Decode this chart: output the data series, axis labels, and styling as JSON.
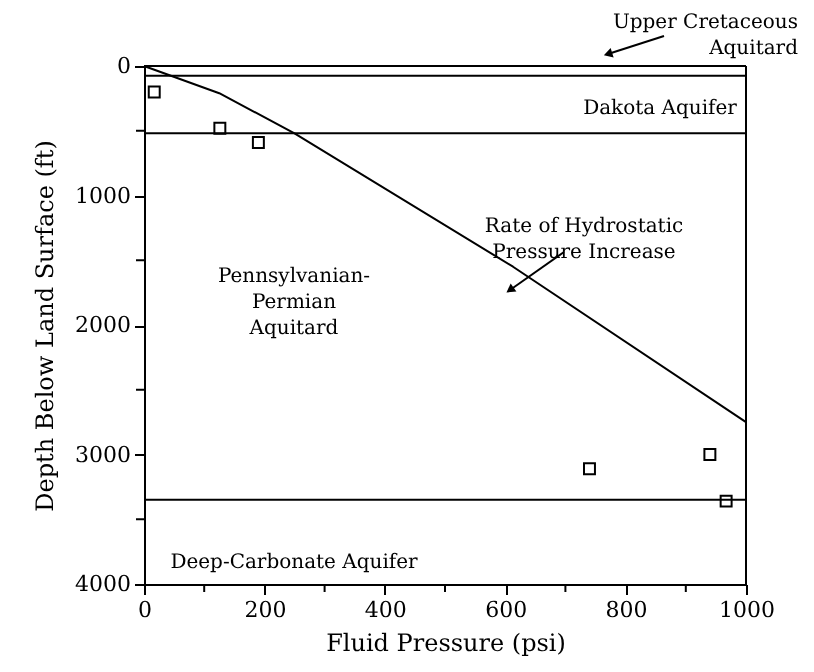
{
  "chart_data": {
    "type": "scatter",
    "xlabel": "Fluid Pressure (psi)",
    "ylabel": "Depth Below Land Surface (ft)",
    "xlim": [
      0,
      1000
    ],
    "ylim": [
      4000,
      0
    ],
    "xticks": [
      0,
      {
        "value": 100,
        "label": null
      },
      200,
      {
        "value": 300,
        "label": null
      },
      400,
      {
        "value": 500,
        "label": null
      },
      600,
      {
        "value": 700,
        "label": null
      },
      800,
      {
        "value": 900,
        "label": null
      },
      1000
    ],
    "yticks": [
      0,
      {
        "value": 500,
        "label": null
      },
      1000,
      {
        "value": 1500,
        "label": null
      },
      2000,
      {
        "value": 2500,
        "label": null
      },
      3000,
      {
        "value": 3500,
        "label": null
      },
      4000
    ],
    "series": [
      {
        "color": "#000000",
        "marker": "square",
        "x": [
          17,
          126,
          190,
          740,
          940,
          967
        ],
        "values": [
          200,
          480,
          590,
          3110,
          3000,
          3360
        ]
      },
      {
        "type": "line",
        "color": "#000000",
        "marker": "none",
        "x": [
          0,
          125,
          250,
          613,
          1000
        ],
        "values": [
          0,
          210,
          520,
          1550,
          2750
        ]
      }
    ],
    "ref_lines": [
      {
        "axis": "y",
        "value": 75,
        "color": "#000000"
      },
      {
        "axis": "y",
        "value": 520,
        "color": "#000000"
      },
      {
        "axis": "y",
        "value": 3350,
        "color": "#000000"
      }
    ],
    "annotations": [
      "Upper Cretaceous\nAquitard",
      "Dakota Aquifer",
      "Rate of Hydrostatic\nPressure Increase",
      "Pennsylvanian-\nPermian\nAquitard",
      "Deep-Carbonate Aquifer"
    ],
    "grid": false
  }
}
